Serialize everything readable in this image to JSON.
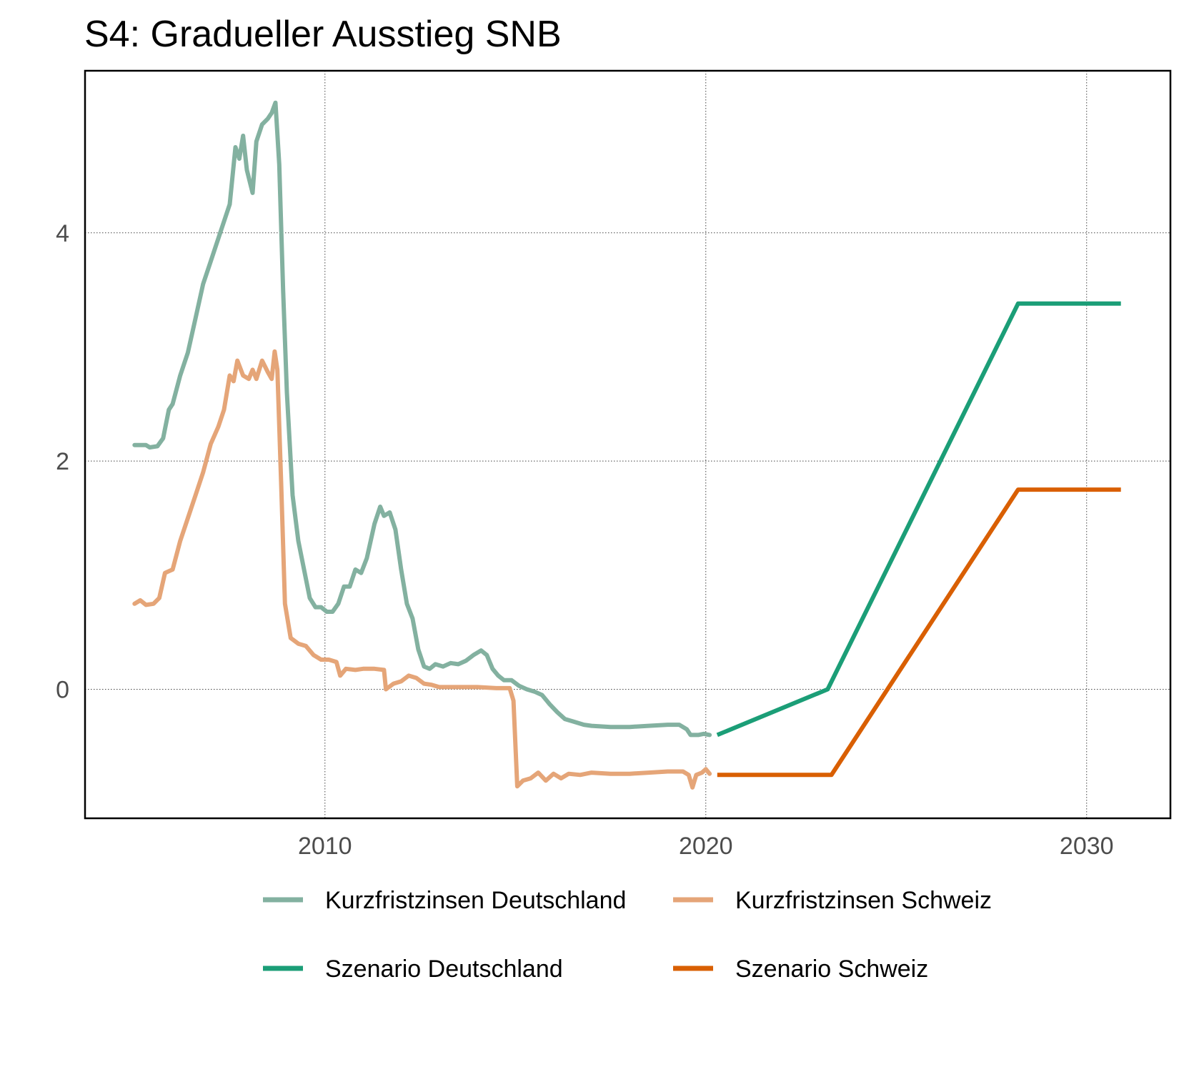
{
  "chart_data": {
    "type": "line",
    "title": "S4: Gradueller Ausstieg SNB",
    "xlabel": "",
    "ylabel": "",
    "xlim": [
      2003.7,
      2032.2
    ],
    "ylim": [
      -1.13,
      5.42
    ],
    "x_ticks": [
      2010,
      2020,
      2030
    ],
    "x_tick_labels": [
      "2010",
      "2020",
      "2030"
    ],
    "y_ticks": [
      0,
      2,
      4
    ],
    "y_tick_labels": [
      "0",
      "2",
      "4"
    ],
    "grid": true,
    "legend_position": "bottom",
    "series": [
      {
        "name": "Kurzfristzinsen Deutschland",
        "color": "#83b1a0",
        "points": [
          [
            2005.0,
            2.14
          ],
          [
            2005.3,
            2.14
          ],
          [
            2005.4,
            2.12
          ],
          [
            2005.6,
            2.13
          ],
          [
            2005.75,
            2.2
          ],
          [
            2005.9,
            2.45
          ],
          [
            2006.0,
            2.5
          ],
          [
            2006.2,
            2.75
          ],
          [
            2006.4,
            2.95
          ],
          [
            2006.6,
            3.25
          ],
          [
            2006.8,
            3.55
          ],
          [
            2007.0,
            3.75
          ],
          [
            2007.2,
            3.95
          ],
          [
            2007.35,
            4.1
          ],
          [
            2007.5,
            4.25
          ],
          [
            2007.65,
            4.75
          ],
          [
            2007.75,
            4.65
          ],
          [
            2007.85,
            4.85
          ],
          [
            2007.95,
            4.55
          ],
          [
            2008.1,
            4.35
          ],
          [
            2008.2,
            4.8
          ],
          [
            2008.35,
            4.95
          ],
          [
            2008.5,
            5.0
          ],
          [
            2008.6,
            5.05
          ],
          [
            2008.7,
            5.14
          ],
          [
            2008.8,
            4.6
          ],
          [
            2008.9,
            3.5
          ],
          [
            2009.0,
            2.6
          ],
          [
            2009.15,
            1.7
          ],
          [
            2009.3,
            1.3
          ],
          [
            2009.45,
            1.05
          ],
          [
            2009.6,
            0.8
          ],
          [
            2009.75,
            0.72
          ],
          [
            2009.9,
            0.72
          ],
          [
            2010.05,
            0.68
          ],
          [
            2010.2,
            0.68
          ],
          [
            2010.35,
            0.75
          ],
          [
            2010.5,
            0.9
          ],
          [
            2010.65,
            0.9
          ],
          [
            2010.8,
            1.05
          ],
          [
            2010.95,
            1.02
          ],
          [
            2011.1,
            1.15
          ],
          [
            2011.3,
            1.45
          ],
          [
            2011.45,
            1.6
          ],
          [
            2011.55,
            1.52
          ],
          [
            2011.7,
            1.55
          ],
          [
            2011.85,
            1.4
          ],
          [
            2012.0,
            1.05
          ],
          [
            2012.15,
            0.75
          ],
          [
            2012.3,
            0.62
          ],
          [
            2012.45,
            0.35
          ],
          [
            2012.6,
            0.2
          ],
          [
            2012.75,
            0.18
          ],
          [
            2012.9,
            0.22
          ],
          [
            2013.1,
            0.2
          ],
          [
            2013.3,
            0.23
          ],
          [
            2013.5,
            0.22
          ],
          [
            2013.7,
            0.25
          ],
          [
            2013.9,
            0.3
          ],
          [
            2014.1,
            0.34
          ],
          [
            2014.25,
            0.3
          ],
          [
            2014.4,
            0.18
          ],
          [
            2014.55,
            0.12
          ],
          [
            2014.7,
            0.08
          ],
          [
            2014.9,
            0.08
          ],
          [
            2015.1,
            0.03
          ],
          [
            2015.3,
            0.0
          ],
          [
            2015.5,
            -0.02
          ],
          [
            2015.7,
            -0.05
          ],
          [
            2015.9,
            -0.13
          ],
          [
            2016.1,
            -0.2
          ],
          [
            2016.3,
            -0.26
          ],
          [
            2016.5,
            -0.28
          ],
          [
            2016.8,
            -0.31
          ],
          [
            2017.0,
            -0.32
          ],
          [
            2017.5,
            -0.33
          ],
          [
            2018.0,
            -0.33
          ],
          [
            2018.5,
            -0.32
          ],
          [
            2019.0,
            -0.31
          ],
          [
            2019.3,
            -0.31
          ],
          [
            2019.5,
            -0.35
          ],
          [
            2019.6,
            -0.4
          ],
          [
            2019.8,
            -0.4
          ],
          [
            2019.95,
            -0.39
          ],
          [
            2020.1,
            -0.4
          ]
        ]
      },
      {
        "name": "Kurzfristzinsen Schweiz",
        "color": "#e5a578",
        "points": [
          [
            2005.0,
            0.75
          ],
          [
            2005.15,
            0.78
          ],
          [
            2005.3,
            0.74
          ],
          [
            2005.5,
            0.75
          ],
          [
            2005.65,
            0.8
          ],
          [
            2005.8,
            1.02
          ],
          [
            2006.0,
            1.05
          ],
          [
            2006.2,
            1.3
          ],
          [
            2006.4,
            1.5
          ],
          [
            2006.6,
            1.7
          ],
          [
            2006.8,
            1.9
          ],
          [
            2007.0,
            2.15
          ],
          [
            2007.2,
            2.3
          ],
          [
            2007.35,
            2.45
          ],
          [
            2007.5,
            2.75
          ],
          [
            2007.6,
            2.7
          ],
          [
            2007.7,
            2.88
          ],
          [
            2007.85,
            2.75
          ],
          [
            2008.0,
            2.72
          ],
          [
            2008.1,
            2.8
          ],
          [
            2008.2,
            2.72
          ],
          [
            2008.35,
            2.88
          ],
          [
            2008.5,
            2.78
          ],
          [
            2008.6,
            2.72
          ],
          [
            2008.68,
            2.96
          ],
          [
            2008.75,
            2.8
          ],
          [
            2008.85,
            1.8
          ],
          [
            2008.95,
            0.75
          ],
          [
            2009.1,
            0.45
          ],
          [
            2009.3,
            0.4
          ],
          [
            2009.5,
            0.38
          ],
          [
            2009.7,
            0.3
          ],
          [
            2009.9,
            0.26
          ],
          [
            2010.1,
            0.26
          ],
          [
            2010.3,
            0.24
          ],
          [
            2010.4,
            0.12
          ],
          [
            2010.55,
            0.18
          ],
          [
            2010.8,
            0.17
          ],
          [
            2011.0,
            0.18
          ],
          [
            2011.3,
            0.18
          ],
          [
            2011.55,
            0.17
          ],
          [
            2011.6,
            0.0
          ],
          [
            2011.8,
            0.05
          ],
          [
            2012.0,
            0.07
          ],
          [
            2012.2,
            0.12
          ],
          [
            2012.4,
            0.1
          ],
          [
            2012.6,
            0.05
          ],
          [
            2012.8,
            0.04
          ],
          [
            2013.0,
            0.02
          ],
          [
            2013.5,
            0.02
          ],
          [
            2014.0,
            0.02
          ],
          [
            2014.5,
            0.01
          ],
          [
            2014.85,
            0.01
          ],
          [
            2014.95,
            -0.1
          ],
          [
            2015.05,
            -0.85
          ],
          [
            2015.2,
            -0.8
          ],
          [
            2015.4,
            -0.78
          ],
          [
            2015.6,
            -0.73
          ],
          [
            2015.8,
            -0.8
          ],
          [
            2016.0,
            -0.74
          ],
          [
            2016.2,
            -0.78
          ],
          [
            2016.4,
            -0.74
          ],
          [
            2016.7,
            -0.75
          ],
          [
            2017.0,
            -0.73
          ],
          [
            2017.5,
            -0.74
          ],
          [
            2018.0,
            -0.74
          ],
          [
            2018.5,
            -0.73
          ],
          [
            2019.0,
            -0.72
          ],
          [
            2019.4,
            -0.72
          ],
          [
            2019.55,
            -0.75
          ],
          [
            2019.65,
            -0.86
          ],
          [
            2019.75,
            -0.75
          ],
          [
            2019.9,
            -0.73
          ],
          [
            2020.0,
            -0.7
          ],
          [
            2020.1,
            -0.74
          ]
        ]
      },
      {
        "name": "Szenario Deutschland",
        "color": "#1b9e77",
        "points": [
          [
            2020.3,
            -0.4
          ],
          [
            2023.2,
            0.0
          ],
          [
            2028.2,
            3.38
          ],
          [
            2030.9,
            3.38
          ]
        ]
      },
      {
        "name": "Szenario Schweiz",
        "color": "#d95f02",
        "points": [
          [
            2020.3,
            -0.75
          ],
          [
            2023.3,
            -0.75
          ],
          [
            2028.2,
            1.75
          ],
          [
            2030.9,
            1.75
          ]
        ]
      }
    ]
  }
}
